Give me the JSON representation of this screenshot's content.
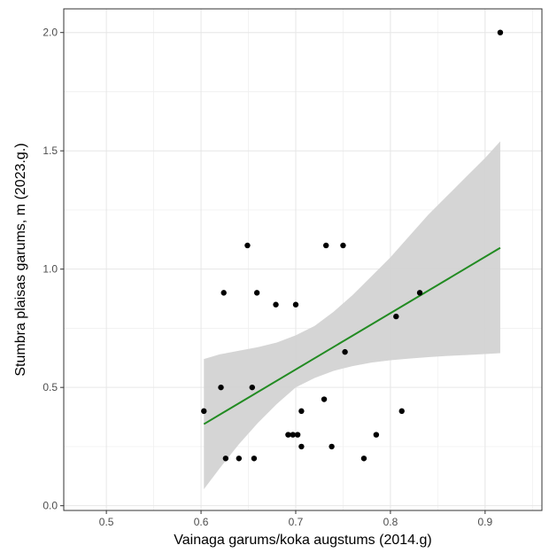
{
  "chart_data": {
    "type": "scatter",
    "xlabel": "Vainaga garums/koka augstums (2014.g)",
    "ylabel": "Stumbra plaisas garums, m (2023.g.)",
    "xlim": [
      0.455,
      0.96
    ],
    "ylim": [
      -0.02,
      2.1
    ],
    "x_ticks": [
      0.5,
      0.6,
      0.7,
      0.8,
      0.9
    ],
    "x_tick_labels": [
      "0.5",
      "0.6",
      "0.7",
      "0.8",
      "0.9"
    ],
    "y_ticks": [
      0.0,
      0.5,
      1.0,
      1.5,
      2.0
    ],
    "y_tick_labels": [
      "0.0",
      "0.5",
      "1.0",
      "1.5",
      "2.0"
    ],
    "grid": true,
    "points": [
      {
        "x": 0.603,
        "y": 0.4
      },
      {
        "x": 0.621,
        "y": 0.5
      },
      {
        "x": 0.624,
        "y": 0.9
      },
      {
        "x": 0.626,
        "y": 0.2
      },
      {
        "x": 0.64,
        "y": 0.2
      },
      {
        "x": 0.649,
        "y": 1.1
      },
      {
        "x": 0.654,
        "y": 0.5
      },
      {
        "x": 0.656,
        "y": 0.2
      },
      {
        "x": 0.659,
        "y": 0.9
      },
      {
        "x": 0.679,
        "y": 0.85
      },
      {
        "x": 0.692,
        "y": 0.3
      },
      {
        "x": 0.697,
        "y": 0.3
      },
      {
        "x": 0.7,
        "y": 0.85
      },
      {
        "x": 0.702,
        "y": 0.3
      },
      {
        "x": 0.706,
        "y": 0.25
      },
      {
        "x": 0.706,
        "y": 0.4
      },
      {
        "x": 0.73,
        "y": 0.45
      },
      {
        "x": 0.732,
        "y": 1.1
      },
      {
        "x": 0.738,
        "y": 0.25
      },
      {
        "x": 0.75,
        "y": 1.1
      },
      {
        "x": 0.752,
        "y": 0.65
      },
      {
        "x": 0.772,
        "y": 0.2
      },
      {
        "x": 0.785,
        "y": 0.3
      },
      {
        "x": 0.806,
        "y": 0.8
      },
      {
        "x": 0.812,
        "y": 0.4
      },
      {
        "x": 0.831,
        "y": 0.9
      },
      {
        "x": 0.916,
        "y": 2.0
      }
    ],
    "trend_line": {
      "color": "#228b22",
      "x": [
        0.603,
        0.916
      ],
      "y": [
        0.345,
        1.09
      ]
    },
    "confidence_band": {
      "color": "#d3d3d3",
      "x": [
        0.603,
        0.62,
        0.64,
        0.66,
        0.68,
        0.7,
        0.72,
        0.74,
        0.76,
        0.78,
        0.8,
        0.82,
        0.84,
        0.86,
        0.88,
        0.9,
        0.916
      ],
      "upper": [
        0.62,
        0.64,
        0.655,
        0.67,
        0.69,
        0.72,
        0.76,
        0.82,
        0.89,
        0.97,
        1.05,
        1.14,
        1.23,
        1.31,
        1.39,
        1.47,
        1.54
      ],
      "lower": [
        0.07,
        0.16,
        0.26,
        0.35,
        0.43,
        0.5,
        0.54,
        0.57,
        0.59,
        0.605,
        0.615,
        0.622,
        0.628,
        0.633,
        0.637,
        0.641,
        0.645
      ]
    },
    "point_color": "#000000"
  }
}
